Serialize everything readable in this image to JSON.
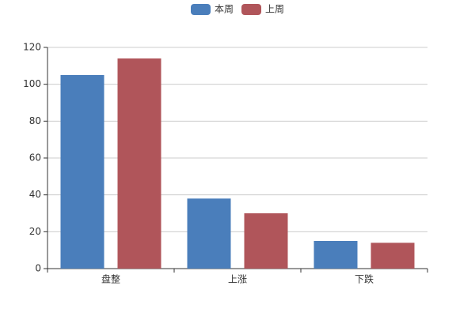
{
  "chart_data": {
    "type": "bar",
    "categories": [
      "盘整",
      "上涨",
      "下跌"
    ],
    "series": [
      {
        "name": "本周",
        "color": "#4a7ebb",
        "values": [
          105,
          38,
          15
        ]
      },
      {
        "name": "上周",
        "color": "#b0555a",
        "values": [
          114,
          30,
          14
        ]
      }
    ],
    "ylim": [
      0,
      120
    ],
    "yticks": [
      0,
      20,
      40,
      60,
      80,
      100,
      120
    ],
    "grid": true,
    "legend": "top"
  }
}
